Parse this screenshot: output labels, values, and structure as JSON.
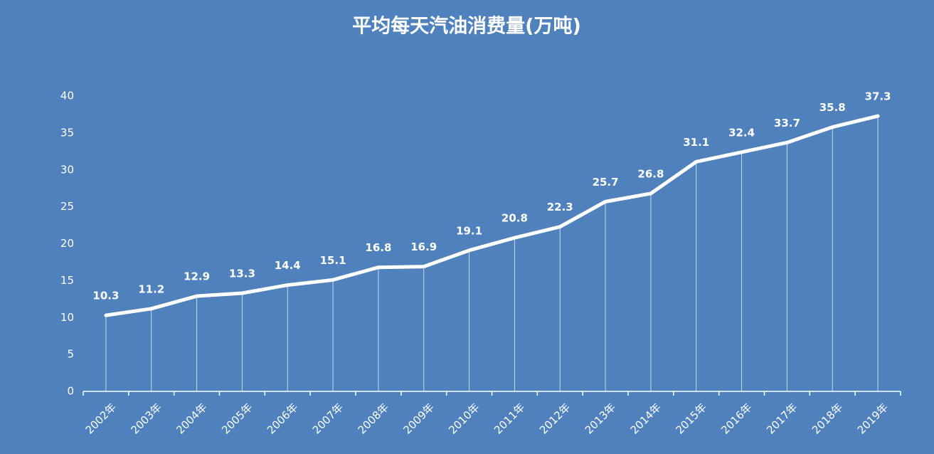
{
  "chart_data": {
    "type": "line",
    "title": "平均每天汽油消费量(万吨)",
    "categories": [
      "2002年",
      "2003年",
      "2004年",
      "2005年",
      "2006年",
      "2007年",
      "2008年",
      "2009年",
      "2010年",
      "2011年",
      "2012年",
      "2013年",
      "2014年",
      "2015年",
      "2016年",
      "2017年",
      "2018年",
      "2019年"
    ],
    "values": [
      10.3,
      11.2,
      12.9,
      13.3,
      14.4,
      15.1,
      16.8,
      16.9,
      19.1,
      20.8,
      22.3,
      25.7,
      26.8,
      31.1,
      32.4,
      33.7,
      35.8,
      37.3
    ],
    "color": "#ffffff",
    "ylim": [
      0,
      40
    ],
    "yticks": [
      0,
      5,
      10,
      15,
      20,
      25,
      30,
      35,
      40
    ],
    "grid": false,
    "drop_lines": true
  }
}
